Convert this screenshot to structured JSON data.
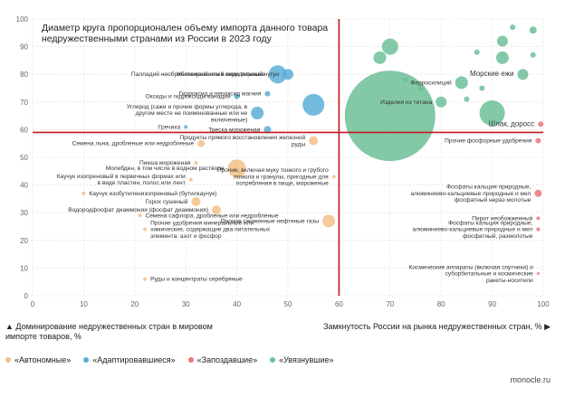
{
  "title": "Диаметр круга пропорционален объему импорта данного товара недружественными странами из России в 2023 году",
  "axis_left_label": "▲ Доминирование недружественных стран в мировом импорте товаров, %",
  "axis_right_label": "Замкнутость России на рынка недружественных стран, % ▶",
  "source": "monocle.ru",
  "colors": {
    "avtonomnye": "#f4c08a",
    "adaptirovavshiesya": "#5aaed6",
    "zapozdavshie": "#e8787a",
    "uvyazshie": "#6dbf99",
    "threshold": "#c0181c"
  },
  "legend": [
    {
      "key": "avtonomnye",
      "label": "«Автономные»"
    },
    {
      "key": "adaptirovavshiesya",
      "label": "«Адаптировавшиеся»"
    },
    {
      "key": "zapozdavshie",
      "label": "«Запоздавшие»"
    },
    {
      "key": "uvyazshie",
      "label": "«Увязнувшие»"
    }
  ],
  "chart_data": {
    "type": "scatter",
    "title": "Диаметр круга пропорционален объему импорта данного товара недружественными странами из России в 2023 году",
    "xlabel": "Замкнутость России на рынка недружественных стран, %",
    "ylabel": "Доминирование недружественных стран в мировом импорте товаров, %",
    "xlim": [
      0,
      100
    ],
    "ylim": [
      0,
      100
    ],
    "xticks": [
      0,
      10,
      20,
      30,
      40,
      50,
      60,
      70,
      80,
      90,
      100
    ],
    "yticks": [
      0,
      10,
      20,
      30,
      40,
      50,
      60,
      70,
      80,
      90,
      100
    ],
    "thresholds": {
      "x": 60,
      "y": 59
    },
    "points": [
      {
        "g": "zapozdavshie",
        "x": 99.5,
        "y": 62,
        "r": 3,
        "label": "Шлак, доросс",
        "big": true
      },
      {
        "g": "uvyazshie",
        "x": 70,
        "y": 65,
        "r": 50,
        "label": ""
      },
      {
        "g": "uvyazshie",
        "x": 90,
        "y": 66,
        "r": 14,
        "label": ""
      },
      {
        "g": "uvyazshie",
        "x": 70,
        "y": 90,
        "r": 9,
        "label": ""
      },
      {
        "g": "uvyazshie",
        "x": 68,
        "y": 86,
        "r": 7,
        "label": ""
      },
      {
        "g": "uvyazshie",
        "x": 92,
        "y": 92,
        "r": 6,
        "label": ""
      },
      {
        "g": "uvyazshie",
        "x": 92,
        "y": 86,
        "r": 7,
        "label": ""
      },
      {
        "g": "uvyazshie",
        "x": 84,
        "y": 77,
        "r": 7,
        "label": "Ферросилиций"
      },
      {
        "g": "uvyazshie",
        "x": 80,
        "y": 70,
        "r": 6,
        "label": "Изделия из титана"
      },
      {
        "g": "uvyazshie",
        "x": 96,
        "y": 80,
        "r": 6,
        "label": "Морские ежи",
        "big": true
      },
      {
        "g": "uvyazshie",
        "x": 88,
        "y": 75,
        "r": 3,
        "label": ""
      },
      {
        "g": "uvyazshie",
        "x": 98,
        "y": 96,
        "r": 4,
        "label": ""
      },
      {
        "g": "uvyazshie",
        "x": 94,
        "y": 97,
        "r": 3,
        "label": ""
      },
      {
        "g": "uvyazshie",
        "x": 76,
        "y": 75,
        "r": 3,
        "label": ""
      },
      {
        "g": "uvyazshie",
        "x": 73,
        "y": 78,
        "r": 3,
        "label": ""
      },
      {
        "g": "uvyazshie",
        "x": 98,
        "y": 87,
        "r": 3,
        "label": ""
      },
      {
        "g": "uvyazshie",
        "x": 85,
        "y": 71,
        "r": 3,
        "label": ""
      },
      {
        "g": "uvyazshie",
        "x": 87,
        "y": 88,
        "r": 3,
        "label": ""
      },
      {
        "g": "adaptirovavshiesya",
        "x": 48,
        "y": 80,
        "r": 10,
        "label": "Палладий необработанный или в виде порошка"
      },
      {
        "g": "adaptirovavshiesya",
        "x": 50,
        "y": 80,
        "r": 6,
        "label": "Нелегированный передельный чугун"
      },
      {
        "g": "adaptirovavshiesya",
        "x": 55,
        "y": 69,
        "r": 12,
        "label": ""
      },
      {
        "g": "adaptirovavshiesya",
        "x": 46,
        "y": 73,
        "r": 3,
        "label": "Гидроксид и пероксид магния"
      },
      {
        "g": "adaptirovavshiesya",
        "x": 40,
        "y": 72,
        "r": 3,
        "label": "Оксиды и гидроксиды ванадия"
      },
      {
        "g": "adaptirovavshiesya",
        "x": 44,
        "y": 66,
        "r": 7,
        "label": "Углерод (сажи и прочие формы углерода, в другом месте не поименованные или не включенные)"
      },
      {
        "g": "adaptirovavshiesya",
        "x": 46,
        "y": 60,
        "r": 4,
        "label": "Треска мороженая"
      },
      {
        "g": "adaptirovavshiesya",
        "x": 30,
        "y": 61,
        "r": 2,
        "label": "Гречиха"
      },
      {
        "g": "avtonomnye",
        "x": 40,
        "y": 46,
        "r": 10,
        "label": "Молибден, в том числе в водном растворе"
      },
      {
        "g": "avtonomnye",
        "x": 33,
        "y": 55,
        "r": 4,
        "label": "Семена льна, дробленые или недробленые"
      },
      {
        "g": "avtonomnye",
        "x": 55,
        "y": 56,
        "r": 5,
        "label": "Продукты прямого восстановления железной руды"
      },
      {
        "g": "avtonomnye",
        "x": 32,
        "y": 48,
        "r": 2,
        "label": "Пикша мороженая"
      },
      {
        "g": "avtonomnye",
        "x": 31,
        "y": 42,
        "r": 2,
        "label": "Каучук изопреновый в первичных формах или в виде пластин, полос или лент"
      },
      {
        "g": "avtonomnye",
        "x": 32,
        "y": 34,
        "r": 5,
        "label": "Горох сушеный"
      },
      {
        "g": "avtonomnye",
        "x": 36,
        "y": 31,
        "r": 5,
        "label": "Водородфосфат диаммония (фосфат диаммония)"
      },
      {
        "g": "avtonomnye",
        "x": 58,
        "y": 27,
        "r": 7,
        "label": "Прочие сжиженные нефтяные газы"
      },
      {
        "g": "avtonomnye",
        "x": 10,
        "y": 37,
        "r": 2,
        "label": "Каучук изобутиленизопреновый (бутилкаучук)"
      },
      {
        "g": "avtonomnye",
        "x": 21,
        "y": 29,
        "r": 2,
        "label": "Семена сафлора, дробленые или недробленые"
      },
      {
        "g": "avtonomnye",
        "x": 22,
        "y": 6,
        "r": 2,
        "label": "Руды и концентраты серебряные"
      },
      {
        "g": "avtonomnye",
        "x": 59,
        "y": 43,
        "r": 2,
        "label": "Прочие, включая муку тонкого и грубого помола и гранулы, пригодные для потребления в пище, мороженые"
      },
      {
        "g": "avtonomnye",
        "x": 22,
        "y": 24,
        "r": 2,
        "label": "Прочие удобрения минеральные или химические, содержащие два питательных элемента: азот и фосфор"
      },
      {
        "g": "zapozdavshie",
        "x": 99,
        "y": 37,
        "r": 4,
        "label": "Фосфаты кальция природные, алюминиево-кальциевые природные и мел фосфатный нераз молотые"
      },
      {
        "g": "zapozdavshie",
        "x": 99,
        "y": 56,
        "r": 3,
        "label": "Прочие фосфорные удобрения"
      },
      {
        "g": "zapozdavshie",
        "x": 99,
        "y": 28,
        "r": 2,
        "label": "Пирит необожженный"
      },
      {
        "g": "zapozdavshie",
        "x": 99,
        "y": 24,
        "r": 2,
        "label": "Фосфаты кальция природные, алюминиево-кальциевые природные и мел фосфатный, размолотые"
      },
      {
        "g": "zapozdavshie",
        "x": 99,
        "y": 8,
        "r": 1.5,
        "label": "Космические аппараты (включая спутники) и суборбитальные и космические ракеты-носители"
      }
    ]
  }
}
